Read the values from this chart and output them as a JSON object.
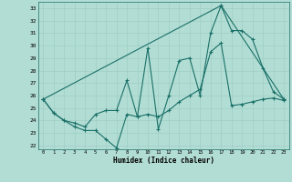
{
  "xlabel": "Humidex (Indice chaleur)",
  "bg_color": "#b2ddd4",
  "grid_color": "#9ecec5",
  "line_color": "#1a7068",
  "xlim": [
    -0.5,
    23.5
  ],
  "ylim": [
    21.7,
    33.5
  ],
  "xticks": [
    0,
    1,
    2,
    3,
    4,
    5,
    6,
    7,
    8,
    9,
    10,
    11,
    12,
    13,
    14,
    15,
    16,
    17,
    18,
    19,
    20,
    21,
    22,
    23
  ],
  "yticks": [
    22,
    23,
    24,
    25,
    26,
    27,
    28,
    29,
    30,
    31,
    32,
    33
  ],
  "series": [
    {
      "x": [
        0,
        1,
        2,
        3,
        4,
        5,
        6,
        7,
        8,
        9,
        10,
        11,
        12,
        13,
        14,
        15,
        16,
        17,
        18,
        19,
        20,
        21,
        22,
        23
      ],
      "y": [
        25.7,
        24.6,
        24.0,
        23.5,
        23.2,
        23.2,
        22.5,
        21.8,
        24.5,
        24.3,
        29.8,
        23.3,
        26.0,
        28.8,
        29.0,
        26.0,
        31.0,
        33.2,
        31.2,
        31.2,
        30.5,
        28.2,
        26.3,
        25.7
      ]
    },
    {
      "x": [
        0,
        1,
        2,
        3,
        4,
        5,
        6,
        7,
        8,
        9,
        10,
        11,
        12,
        13,
        14,
        15,
        16,
        17,
        18,
        19,
        20,
        21,
        22,
        23
      ],
      "y": [
        25.7,
        24.6,
        24.0,
        23.8,
        23.5,
        24.5,
        24.8,
        24.8,
        27.2,
        24.3,
        24.5,
        24.3,
        24.8,
        25.5,
        26.0,
        26.5,
        29.5,
        30.2,
        25.2,
        25.3,
        25.5,
        25.7,
        25.8,
        25.6
      ]
    },
    {
      "x": [
        0,
        17,
        23
      ],
      "y": [
        25.7,
        33.2,
        25.7
      ]
    }
  ]
}
